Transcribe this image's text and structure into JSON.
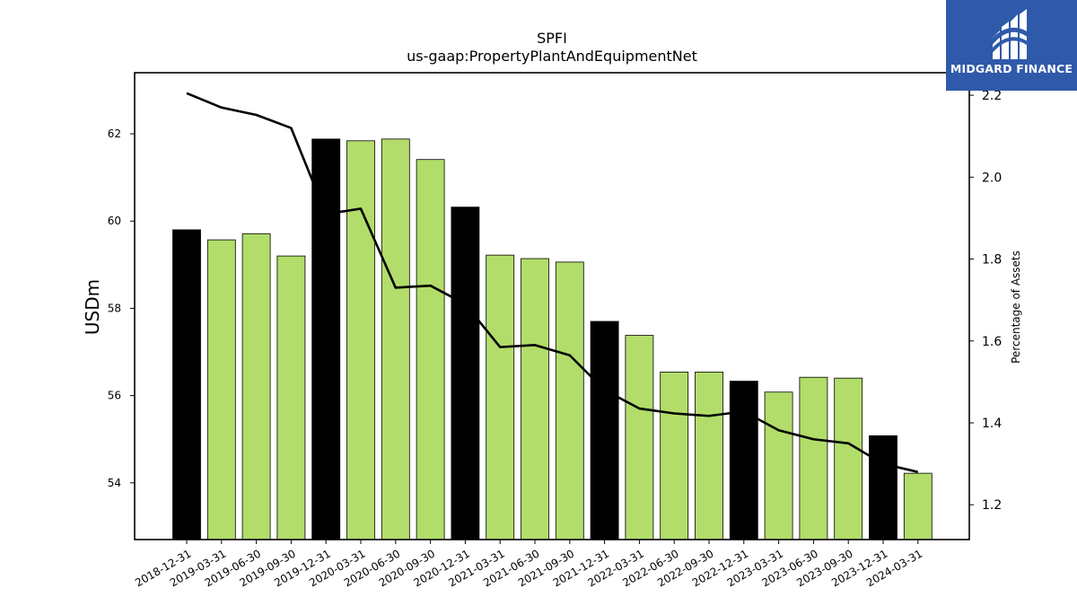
{
  "chart_data": {
    "type": "bar+line",
    "title": "SPFI",
    "subtitle": "us-gaap:PropertyPlantAndEquipmentNet",
    "ylabel": "USDm",
    "y2label": "Percentage of Assets",
    "categories": [
      "2018-12-31",
      "2019-03-31",
      "2019-06-30",
      "2019-09-30",
      "2019-12-31",
      "2020-03-31",
      "2020-06-30",
      "2020-09-30",
      "2020-12-31",
      "2021-03-31",
      "2021-06-30",
      "2021-09-30",
      "2021-12-31",
      "2022-03-31",
      "2022-06-30",
      "2022-09-30",
      "2022-12-31",
      "2023-03-31",
      "2023-06-30",
      "2023-09-30",
      "2023-12-31",
      "2024-03-31"
    ],
    "bar_values": [
      59.8,
      59.57,
      59.71,
      59.2,
      61.88,
      61.84,
      61.88,
      61.41,
      60.32,
      59.22,
      59.14,
      59.06,
      57.7,
      57.38,
      56.54,
      56.54,
      56.33,
      56.08,
      56.42,
      56.4,
      55.08,
      54.22
    ],
    "bar_highlight": [
      true,
      false,
      false,
      false,
      true,
      false,
      false,
      false,
      true,
      false,
      false,
      false,
      true,
      false,
      false,
      false,
      true,
      false,
      false,
      false,
      true,
      false
    ],
    "line_values": [
      2.205,
      2.17,
      2.152,
      2.12,
      1.91,
      1.923,
      1.73,
      1.735,
      1.69,
      1.585,
      1.59,
      1.565,
      1.48,
      1.435,
      1.423,
      1.417,
      1.428,
      1.382,
      1.36,
      1.35,
      1.3,
      1.28
    ],
    "ylim": [
      52.7,
      63.4
    ],
    "y2lim": [
      1.115,
      2.255
    ],
    "yticks": [
      54,
      56,
      58,
      60,
      62
    ],
    "y2ticks": [
      1.2,
      1.4,
      1.6,
      1.8,
      2.0,
      2.2
    ],
    "colors": {
      "bar": "#b2dd6a",
      "bar_highlight": "#000000",
      "line": "#000000"
    }
  },
  "logo": {
    "text": "MIDGARD FINANCE",
    "bg": "#2f5aaa"
  }
}
